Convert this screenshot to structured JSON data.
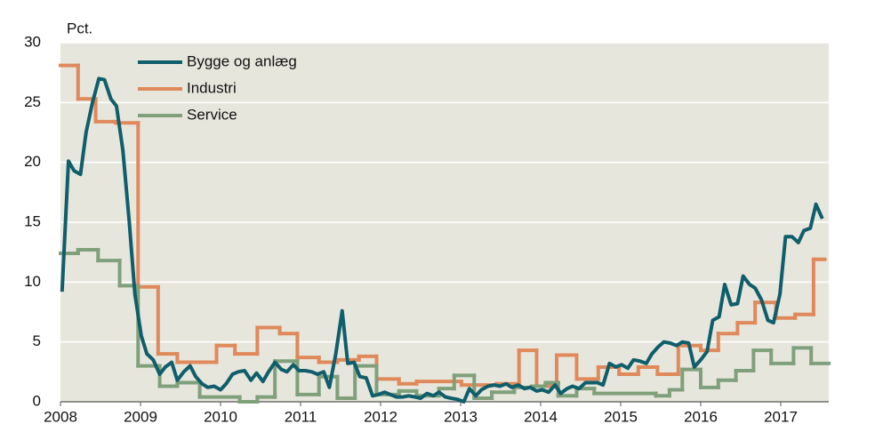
{
  "chart_data": {
    "type": "line",
    "y_axis_label": "Pct.",
    "xlim": [
      2008,
      2017.6
    ],
    "xticks": [
      2008,
      2009,
      2010,
      2011,
      2012,
      2013,
      2014,
      2015,
      2016,
      2017
    ],
    "ylim": [
      0,
      30
    ],
    "yticks": [
      0,
      5,
      10,
      15,
      20,
      25,
      30
    ],
    "grid": true,
    "legend": "upper-left",
    "background": "#e7e6dd",
    "series": [
      {
        "name": "Bygge og anlæg",
        "color": "#0f5e6b",
        "drawstyle": "default",
        "x": [
          2008.02,
          2008.1,
          2008.17,
          2008.25,
          2008.32,
          2008.4,
          2008.48,
          2008.55,
          2008.63,
          2008.7,
          2008.78,
          2008.86,
          2008.93,
          2009.01,
          2009.08,
          2009.16,
          2009.24,
          2009.31,
          2009.39,
          2009.46,
          2009.54,
          2009.62,
          2009.69,
          2009.77,
          2009.84,
          2009.92,
          2010.0,
          2010.07,
          2010.15,
          2010.22,
          2010.3,
          2010.38,
          2010.45,
          2010.53,
          2010.6,
          2010.68,
          2010.76,
          2010.83,
          2010.91,
          2010.98,
          2011.06,
          2011.14,
          2011.21,
          2011.29,
          2011.36,
          2011.44,
          2011.52,
          2011.59,
          2011.67,
          2011.74,
          2011.82,
          2011.9,
          2011.97,
          2012.05,
          2012.12,
          2012.2,
          2012.28,
          2012.35,
          2012.43,
          2012.5,
          2012.58,
          2012.66,
          2012.73,
          2012.81,
          2012.88,
          2012.96,
          2013.04,
          2013.11,
          2013.19,
          2013.26,
          2013.34,
          2013.42,
          2013.49,
          2013.57,
          2013.64,
          2013.72,
          2013.8,
          2013.87,
          2013.95,
          2014.02,
          2014.1,
          2014.18,
          2014.25,
          2014.33,
          2014.4,
          2014.48,
          2014.56,
          2014.63,
          2014.71,
          2014.78,
          2014.86,
          2014.94,
          2015.01,
          2015.09,
          2015.16,
          2015.24,
          2015.32,
          2015.39,
          2015.47,
          2015.54,
          2015.62,
          2015.7,
          2015.77,
          2015.85,
          2015.92,
          2016.0,
          2016.08,
          2016.15,
          2016.23,
          2016.3,
          2016.38,
          2016.46,
          2016.53,
          2016.61,
          2016.68,
          2016.76,
          2016.84,
          2016.91,
          2016.99,
          2017.06,
          2017.14,
          2017.22,
          2017.29,
          2017.37,
          2017.44,
          2017.52
        ],
        "values": [
          9.2,
          20.1,
          19.3,
          19.0,
          22.5,
          25,
          27,
          26.9,
          25.3,
          24.7,
          21,
          15,
          9,
          5.5,
          4,
          3.5,
          2.3,
          2.9,
          3.3,
          1.8,
          2.5,
          3.0,
          2.1,
          1.5,
          1.2,
          1.3,
          1.0,
          1.5,
          2.3,
          2.5,
          2.6,
          1.8,
          2.4,
          1.7,
          2.5,
          3.3,
          2.7,
          2.5,
          3.1,
          2.6,
          2.6,
          2.5,
          2.3,
          2.5,
          1.2,
          4.0,
          7.6,
          3.2,
          3.3,
          2.1,
          2.0,
          0.5,
          0.6,
          0.8,
          0.6,
          0.4,
          0.4,
          0.5,
          0.4,
          0.3,
          0.7,
          0.5,
          0.8,
          0.4,
          0.3,
          0.2,
          0.0,
          1.1,
          0.5,
          1.0,
          1.3,
          1.4,
          1.3,
          1.5,
          1.2,
          1.4,
          1.1,
          1.2,
          0.9,
          1.0,
          0.8,
          1.4,
          0.7,
          1.1,
          1.3,
          1.1,
          1.6,
          1.6,
          1.6,
          1.4,
          3.2,
          2.9,
          3.1,
          2.8,
          3.5,
          3.4,
          3.2,
          4.0,
          4.6,
          5.0,
          4.9,
          4.7,
          5.0,
          4.9,
          2.9,
          3.5,
          4.2,
          6.8,
          7.1,
          9.8,
          8.1,
          8.2,
          10.5,
          9.8,
          9.5,
          8.5,
          6.8,
          6.6,
          9.0,
          13.8,
          13.8,
          13.3,
          14.3,
          14.5,
          16.5,
          15.3
        ]
      },
      {
        "name": "Industri",
        "color": "#e0895a",
        "drawstyle": "steps-post",
        "x": [
          2008.0,
          2008.22,
          2008.44,
          2008.69,
          2008.97,
          2009.22,
          2009.46,
          2009.95,
          2010.18,
          2010.46,
          2010.74,
          2010.96,
          2011.23,
          2011.46,
          2011.73,
          2011.95,
          2012.23,
          2012.45,
          2013.01,
          2013.45,
          2013.73,
          2013.95,
          2014.2,
          2014.45,
          2014.72,
          2014.98,
          2015.22,
          2015.46,
          2015.72,
          2016.0,
          2016.22,
          2016.46,
          2016.68,
          2016.94,
          2017.18,
          2017.41,
          2017.55
        ],
        "values": [
          28.1,
          25.3,
          23.4,
          23.3,
          9.6,
          4.0,
          3.3,
          4.7,
          4.0,
          6.2,
          5.7,
          3.7,
          3.3,
          3.5,
          3.8,
          1.9,
          1.5,
          1.7,
          1.4,
          1.5,
          4.3,
          1.3,
          3.9,
          1.9,
          2.9,
          2.3,
          2.9,
          2.3,
          4.7,
          4.3,
          5.7,
          6.6,
          8.3,
          7.0,
          7.3,
          11.9,
          11.9
        ]
      },
      {
        "name": "Service",
        "color": "#7fa07a",
        "drawstyle": "steps-post",
        "x": [
          2008.0,
          2008.22,
          2008.47,
          2008.74,
          2008.97,
          2009.24,
          2009.46,
          2009.74,
          2010.24,
          2010.46,
          2010.68,
          2010.96,
          2011.23,
          2011.46,
          2011.68,
          2011.95,
          2012.23,
          2012.45,
          2012.73,
          2012.92,
          2013.17,
          2013.39,
          2013.67,
          2013.89,
          2014.06,
          2014.22,
          2014.45,
          2014.67,
          2015.44,
          2015.61,
          2015.77,
          2016.0,
          2016.22,
          2016.44,
          2016.66,
          2016.88,
          2017.16,
          2017.38,
          2017.6
        ],
        "values": [
          12.4,
          12.7,
          11.8,
          9.7,
          3.0,
          1.3,
          1.6,
          0.4,
          0.0,
          0.4,
          3.4,
          0.6,
          2.1,
          0.3,
          3.0,
          0.6,
          0.9,
          0.5,
          1.1,
          2.2,
          0.3,
          0.8,
          1.2,
          1.3,
          1.6,
          0.5,
          1.1,
          0.7,
          0.5,
          1.0,
          2.7,
          1.2,
          1.8,
          2.6,
          4.3,
          3.2,
          4.5,
          3.2,
          3.2
        ]
      }
    ]
  }
}
